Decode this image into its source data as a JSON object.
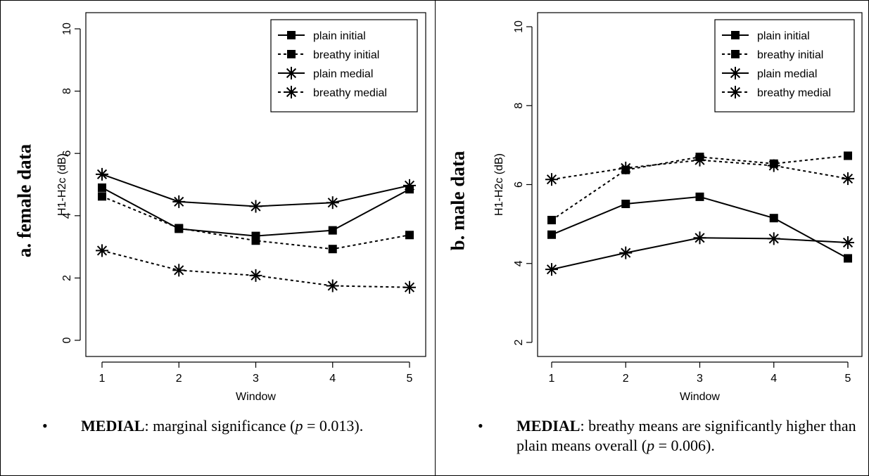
{
  "chart_data": [
    {
      "type": "line",
      "panel_label": "a. female data",
      "xlabel": "Window",
      "ylabel": "H1-H2c (dB)",
      "xlim": [
        1,
        5
      ],
      "ylim": [
        0,
        10
      ],
      "xticks": [
        1,
        2,
        3,
        4,
        5
      ],
      "yticks": [
        0,
        2,
        4,
        6,
        8,
        10
      ],
      "x": [
        1,
        2,
        3,
        4,
        5
      ],
      "legend_position": "top-right",
      "series": [
        {
          "name": "plain initial",
          "marker": "square",
          "dash": "solid",
          "values": [
            4.9,
            3.58,
            3.35,
            3.53,
            4.85
          ]
        },
        {
          "name": "breathy initial",
          "marker": "square",
          "dash": "dashed",
          "values": [
            4.62,
            3.6,
            3.2,
            2.93,
            3.38
          ]
        },
        {
          "name": "plain medial",
          "marker": "asterisk",
          "dash": "solid",
          "values": [
            5.33,
            4.45,
            4.3,
            4.42,
            4.97
          ]
        },
        {
          "name": "breathy medial",
          "marker": "asterisk",
          "dash": "dashed",
          "values": [
            2.88,
            2.25,
            2.08,
            1.75,
            1.7
          ]
        }
      ],
      "note": {
        "bullet": "•",
        "bold": "MEDIAL",
        "pre": ": marginal significance (",
        "italic": "p",
        "post": " = 0.013)."
      }
    },
    {
      "type": "line",
      "panel_label": "b. male data",
      "xlabel": "Window",
      "ylabel": "H1-H2c (dB)",
      "xlim": [
        1,
        5
      ],
      "ylim": [
        2,
        10
      ],
      "xticks": [
        1,
        2,
        3,
        4,
        5
      ],
      "yticks": [
        2,
        4,
        6,
        8,
        10
      ],
      "x": [
        1,
        2,
        3,
        4,
        5
      ],
      "legend_position": "top-right",
      "series": [
        {
          "name": "plain initial",
          "marker": "square",
          "dash": "solid",
          "values": [
            4.73,
            5.51,
            5.69,
            5.15,
            4.13
          ]
        },
        {
          "name": "breathy initial",
          "marker": "square",
          "dash": "dashed",
          "values": [
            5.1,
            6.37,
            6.7,
            6.53,
            6.73
          ]
        },
        {
          "name": "plain medial",
          "marker": "asterisk",
          "dash": "solid",
          "values": [
            3.85,
            4.27,
            4.65,
            4.63,
            4.53
          ]
        },
        {
          "name": "breathy medial",
          "marker": "asterisk",
          "dash": "dashed",
          "values": [
            6.13,
            6.42,
            6.62,
            6.48,
            6.15
          ]
        }
      ],
      "note": {
        "bullet": "•",
        "bold": "MEDIAL",
        "pre": ": breathy means are significantly higher than plain means overall (",
        "italic": "p",
        "post": " = 0.006)."
      }
    }
  ]
}
